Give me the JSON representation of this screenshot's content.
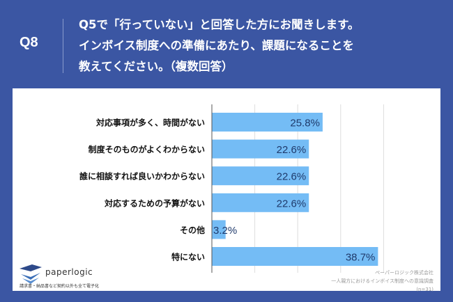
{
  "header": {
    "question_id": "Q8",
    "question_text": [
      "Q5で「行っていない」と回答した方にお聞きします。",
      "インボイス制度への準備にあたり、課題になることを",
      "教えてください。（複数回答）"
    ]
  },
  "chart_data": {
    "type": "bar",
    "orientation": "horizontal",
    "categories": [
      "対応事項が多く、時間がない",
      "制度そのものがよくわからない",
      "誰に相談すれば良いかわからない",
      "対応するための予算がない",
      "その他",
      "特にない"
    ],
    "values": [
      25.8,
      22.6,
      22.6,
      22.6,
      3.2,
      38.7
    ],
    "data_labels": [
      "25.8%",
      "22.6%",
      "22.6%",
      "22.6%",
      "3.2%",
      "38.7%"
    ],
    "xlim": [
      0,
      50
    ],
    "grid": true,
    "bar_color": "#74bcf5",
    "label_color": "#1f3a6b"
  },
  "footer": {
    "brand": "paperlogic",
    "tagline": "請求書・納品書など契約以外も全て電子化",
    "source": [
      "ペーパーロジック株式会社",
      "一人親方におけるインボイス制度への意識調査",
      "(n=31)"
    ]
  },
  "colors": {
    "background": "#3b56a3",
    "panel": "#ffffff"
  }
}
